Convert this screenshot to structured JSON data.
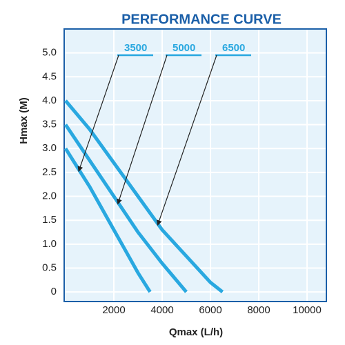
{
  "chart_data": {
    "type": "line",
    "title": "PERFORMANCE CURVE",
    "x_label": "Qmax (L/h)",
    "y_label": "Hmax (M)",
    "series": [
      {
        "name": "3500",
        "color": "#29a8e0",
        "x": [
          0,
          500,
          1000,
          1500,
          2000,
          2500,
          3000,
          3500
        ],
        "values": [
          3.0,
          2.6,
          2.2,
          1.75,
          1.3,
          0.85,
          0.4,
          0
        ]
      },
      {
        "name": "5000",
        "color": "#29a8e0",
        "x": [
          0,
          1000,
          2000,
          3000,
          4000,
          5000
        ],
        "values": [
          3.5,
          2.75,
          2.0,
          1.25,
          0.6,
          0
        ]
      },
      {
        "name": "6500",
        "color": "#29a8e0",
        "x": [
          0,
          1000,
          2000,
          3000,
          4000,
          5000,
          6000,
          6500
        ],
        "values": [
          4.0,
          3.4,
          2.7,
          2.0,
          1.3,
          0.75,
          0.2,
          0
        ]
      }
    ],
    "xlim": [
      0,
      10800
    ],
    "ylim": [
      -0.2,
      5.5
    ],
    "xticks": [
      2000,
      4000,
      6000,
      8000,
      10000
    ],
    "yticks": [
      0,
      0.5,
      {
        "value": 1,
        "label": "1.0"
      },
      1.5,
      {
        "value": 2,
        "label": "2.0"
      },
      2.5,
      {
        "value": 3,
        "label": "3.0"
      },
      3.5,
      {
        "value": 4,
        "label": "4.0"
      },
      4.5,
      {
        "value": 5,
        "label": "5.0"
      }
    ],
    "grid": true,
    "background": "#e6f3fb"
  }
}
